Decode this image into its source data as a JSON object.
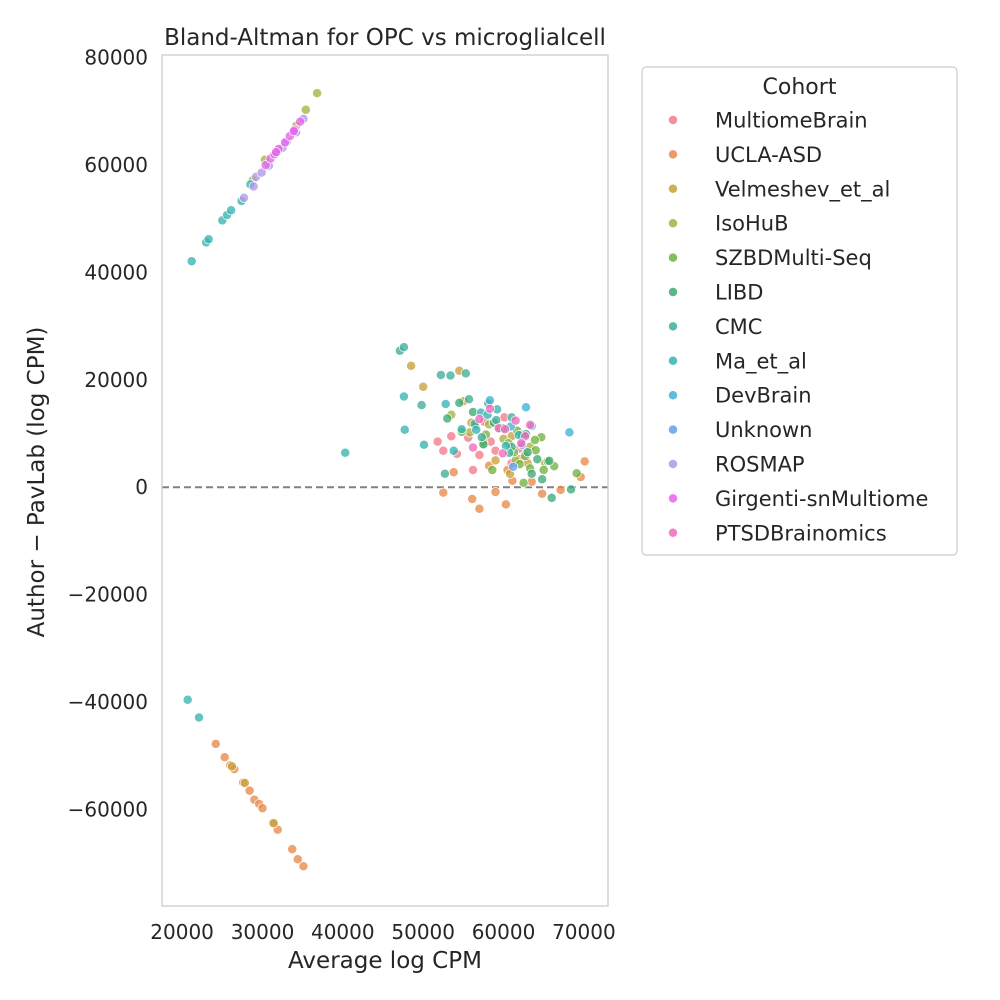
{
  "chart_data": {
    "type": "scatter",
    "title": "Bland-Altman for OPC vs microglialcell",
    "xlabel": "Average log CPM",
    "ylabel": "Author − PavLab (log CPM)",
    "xlim": [
      17500,
      73000
    ],
    "ylim": [
      -78000,
      80500
    ],
    "x_ticks": [
      20000,
      30000,
      40000,
      50000,
      60000,
      70000
    ],
    "y_ticks": [
      80000,
      60000,
      40000,
      20000,
      0,
      -20000,
      -40000,
      -60000
    ],
    "x_tick_labels": [
      "20000",
      "30000",
      "40000",
      "50000",
      "60000",
      "70000"
    ],
    "y_tick_labels": [
      "80000",
      "60000",
      "40000",
      "20000",
      "0",
      "−20000",
      "−40000",
      "−60000"
    ],
    "reference_line": {
      "y": 0,
      "style": "dashed",
      "color": "#808080"
    },
    "grid": false,
    "legend": {
      "title": "Cohort",
      "placement": "right-outside"
    },
    "series": [
      {
        "name": "MultiomeBrain",
        "color": "#f37b8a",
        "points": [
          [
            51800,
            8500
          ],
          [
            52500,
            6800
          ],
          [
            53500,
            9500
          ],
          [
            54200,
            6200
          ],
          [
            55600,
            9200
          ],
          [
            56200,
            3200
          ],
          [
            57000,
            6000
          ],
          [
            57600,
            12200
          ],
          [
            58400,
            8500
          ],
          [
            59000,
            6800
          ],
          [
            60100,
            13000
          ],
          [
            61000,
            4500
          ],
          [
            62000,
            7200
          ],
          [
            62800,
            6200
          ]
        ]
      },
      {
        "name": "UCLA-ASD",
        "color": "#e88a4a",
        "points": [
          [
            52500,
            -1000
          ],
          [
            53800,
            2800
          ],
          [
            56100,
            -2200
          ],
          [
            57000,
            -4000
          ],
          [
            58200,
            4000
          ],
          [
            59000,
            -900
          ],
          [
            60300,
            -3200
          ],
          [
            60500,
            3200
          ],
          [
            61100,
            1200
          ],
          [
            62000,
            5200
          ],
          [
            63500,
            1000
          ],
          [
            64800,
            -1200
          ],
          [
            67100,
            -500
          ],
          [
            69600,
            1900
          ],
          [
            70100,
            4800
          ],
          [
            24200,
            -47800
          ],
          [
            25300,
            -50300
          ],
          [
            26000,
            -51800
          ],
          [
            26500,
            -52500
          ],
          [
            27600,
            -55000
          ],
          [
            28400,
            -56500
          ],
          [
            29000,
            -58200
          ],
          [
            29600,
            -59000
          ],
          [
            30000,
            -59800
          ],
          [
            31300,
            -62500
          ],
          [
            31900,
            -63800
          ],
          [
            33700,
            -67400
          ],
          [
            34400,
            -69300
          ],
          [
            35100,
            -70600
          ]
        ]
      },
      {
        "name": "Velmeshev_et_al",
        "color": "#c6a23c",
        "points": [
          [
            48500,
            22600
          ],
          [
            50000,
            18700
          ],
          [
            54500,
            21700
          ],
          [
            55000,
            16000
          ],
          [
            56000,
            12000
          ],
          [
            57500,
            8000
          ],
          [
            59000,
            5000
          ],
          [
            61000,
            9500
          ],
          [
            63000,
            4500
          ],
          [
            60800,
            2500
          ],
          [
            27800,
            -55100
          ],
          [
            31400,
            -62600
          ],
          [
            26200,
            -52000
          ]
        ]
      },
      {
        "name": "IsoHuB",
        "color": "#a7b140",
        "points": [
          [
            53500,
            13500
          ],
          [
            55800,
            10200
          ],
          [
            57500,
            8500
          ],
          [
            58200,
            11700
          ],
          [
            60000,
            9000
          ],
          [
            61500,
            5000
          ],
          [
            63300,
            7500
          ],
          [
            65200,
            4500
          ],
          [
            36800,
            73400
          ],
          [
            35400,
            70300
          ],
          [
            30300,
            61000
          ],
          [
            28800,
            57200
          ],
          [
            34200,
            67300
          ]
        ]
      },
      {
        "name": "SZBDMulti-Seq",
        "color": "#72b241",
        "points": [
          [
            54800,
            10300
          ],
          [
            56500,
            11500
          ],
          [
            57800,
            9800
          ],
          [
            58600,
            3200
          ],
          [
            59500,
            11000
          ],
          [
            60600,
            8200
          ],
          [
            61300,
            6500
          ],
          [
            62000,
            4300
          ],
          [
            62700,
            5800
          ],
          [
            63300,
            3500
          ],
          [
            64000,
            6900
          ],
          [
            64700,
            9300
          ],
          [
            65500,
            4800
          ],
          [
            66300,
            3900
          ],
          [
            69100,
            2600
          ],
          [
            63900,
            8800
          ],
          [
            61700,
            10500
          ],
          [
            65000,
            3200
          ],
          [
            62500,
            800
          ]
        ]
      },
      {
        "name": "LIBD",
        "color": "#3eaa77",
        "points": [
          [
            53000,
            12800
          ],
          [
            54500,
            15700
          ],
          [
            56200,
            14000
          ],
          [
            57500,
            8000
          ],
          [
            58800,
            12000
          ],
          [
            60000,
            11000
          ],
          [
            61000,
            7500
          ],
          [
            62300,
            9800
          ],
          [
            63000,
            6500
          ],
          [
            64200,
            5200
          ],
          [
            65700,
            4900
          ],
          [
            66000,
            -2000
          ],
          [
            68400,
            -400
          ],
          [
            63500,
            2500
          ],
          [
            64800,
            1500
          ],
          [
            62800,
            9900
          ]
        ]
      },
      {
        "name": "CMC",
        "color": "#41ad9b",
        "points": [
          [
            47100,
            25400
          ],
          [
            47600,
            26100
          ],
          [
            49800,
            15300
          ],
          [
            52200,
            20900
          ],
          [
            53400,
            20800
          ],
          [
            55300,
            21200
          ],
          [
            55700,
            16400
          ],
          [
            57300,
            9300
          ],
          [
            58100,
            15600
          ],
          [
            59100,
            12500
          ],
          [
            61000,
            13000
          ],
          [
            52700,
            2500
          ],
          [
            60700,
            6400
          ],
          [
            56400,
            11800
          ]
        ]
      },
      {
        "name": "Ma_et_al",
        "color": "#37b4b1",
        "points": [
          [
            40300,
            6400
          ],
          [
            47600,
            16900
          ],
          [
            47700,
            10700
          ],
          [
            50100,
            7900
          ],
          [
            52800,
            15500
          ],
          [
            53800,
            6800
          ],
          [
            54800,
            10800
          ],
          [
            56600,
            10700
          ],
          [
            57200,
            13900
          ],
          [
            58000,
            13500
          ],
          [
            59200,
            14500
          ],
          [
            60300,
            7700
          ],
          [
            61900,
            9700
          ],
          [
            21200,
            42100
          ],
          [
            23000,
            45600
          ],
          [
            23300,
            46200
          ],
          [
            25000,
            49700
          ],
          [
            25600,
            50700
          ],
          [
            26100,
            51600
          ],
          [
            27400,
            53300
          ],
          [
            28500,
            56400
          ],
          [
            20700,
            -39600
          ],
          [
            22100,
            -42900
          ]
        ]
      },
      {
        "name": "DevBrain",
        "color": "#3fb1d6",
        "points": [
          [
            62800,
            14900
          ],
          [
            68200,
            10200
          ],
          [
            60900,
            11300
          ],
          [
            58300,
            16200
          ]
        ]
      },
      {
        "name": "Unknown",
        "color": "#5fa0ee",
        "points": [
          [
            63500,
            11400
          ],
          [
            62300,
            7900
          ],
          [
            61200,
            3800
          ]
        ]
      },
      {
        "name": "ROSMAP",
        "color": "#b198e8",
        "points": [
          [
            27700,
            53900
          ],
          [
            28900,
            56000
          ],
          [
            29200,
            57800
          ],
          [
            30800,
            59900
          ],
          [
            31900,
            62700
          ],
          [
            33000,
            64300
          ],
          [
            34200,
            66100
          ],
          [
            35100,
            68600
          ],
          [
            32500,
            63200
          ],
          [
            29900,
            58600
          ]
        ]
      },
      {
        "name": "Girgenti-snMultiome",
        "color": "#e663ed",
        "points": [
          [
            30400,
            60000
          ],
          [
            31000,
            61200
          ],
          [
            31500,
            62000
          ],
          [
            32000,
            63000
          ],
          [
            32800,
            64200
          ],
          [
            33400,
            65400
          ],
          [
            34000,
            66600
          ],
          [
            34700,
            68100
          ],
          [
            31700,
            62400
          ],
          [
            33900,
            66300
          ]
        ]
      },
      {
        "name": "PTSDBrainomics",
        "color": "#ef6cbb",
        "points": [
          [
            57000,
            12700
          ],
          [
            58300,
            14600
          ],
          [
            59400,
            11000
          ],
          [
            60200,
            10800
          ],
          [
            61500,
            12400
          ],
          [
            62700,
            9500
          ],
          [
            63300,
            11600
          ],
          [
            62200,
            8200
          ],
          [
            59900,
            6300
          ],
          [
            56200,
            7400
          ]
        ]
      }
    ]
  }
}
